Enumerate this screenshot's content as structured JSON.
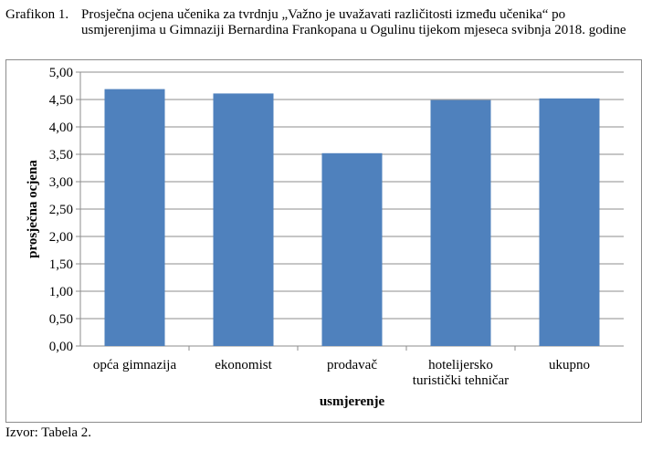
{
  "caption": {
    "number": "Grafikon 1.",
    "text": "Prosječna ocjena učenika za tvrdnju „Važno je uvažavati različitosti između učenika“ po usmjerenjima u Gimnaziji Bernardina Frankopana u Ogulinu tijekom mjeseca svibnja 2018. godine"
  },
  "source": "Izvor: Tabela 2.",
  "chart_data": {
    "type": "bar",
    "categories": [
      "opća gimnazija",
      "ekonomist",
      "prodavač",
      "hotelijersko turistički tehničar",
      "ukupno"
    ],
    "category_lines": [
      [
        "opća gimnazija"
      ],
      [
        "ekonomist"
      ],
      [
        "prodavač"
      ],
      [
        "hotelijersko",
        "turistički tehničar"
      ],
      [
        "ukupno"
      ]
    ],
    "values": [
      4.69,
      4.61,
      3.52,
      4.49,
      4.52
    ],
    "xlabel": "usmjerenje",
    "ylabel": "prosječna ocjena",
    "ylim": [
      0,
      5
    ],
    "yticks": [
      "0,00",
      "0,50",
      "1,00",
      "1,50",
      "2,00",
      "2,50",
      "3,00",
      "3,50",
      "4,00",
      "4,50",
      "5,00"
    ],
    "grid": true,
    "legend": "none",
    "bar_color": "#4f81bd",
    "grid_color": "#8c8c8c"
  }
}
